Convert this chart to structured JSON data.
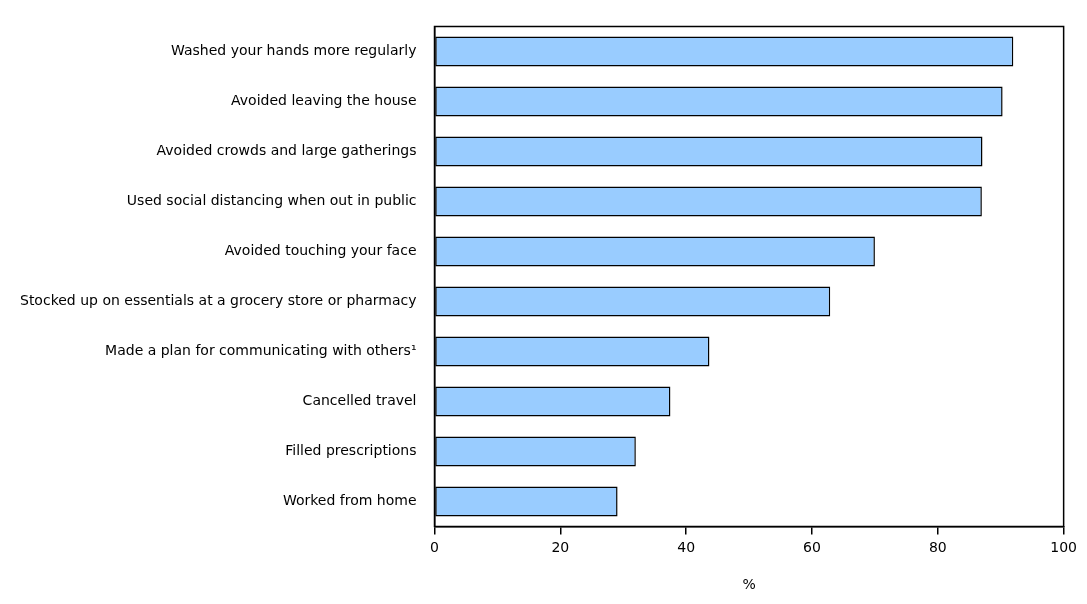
{
  "chart_data": {
    "type": "bar",
    "orientation": "horizontal",
    "xlabel": "%",
    "categories": [
      "Washed your hands more regularly",
      "Avoided leaving the house",
      "Avoided crowds and large gatherings",
      "Used social distancing when out in public",
      "Avoided touching your face",
      "Stocked up on essentials at a grocery store or pharmacy",
      "Made a plan for communicating with others¹",
      "Cancelled travel",
      "Filled prescriptions",
      "Worked from home"
    ],
    "values": [
      92.0,
      90.3,
      87.1,
      87.0,
      70.0,
      62.9,
      43.7,
      37.5,
      32.0,
      29.1
    ],
    "color": "#99ccff",
    "xlim": [
      0,
      100
    ],
    "xticks": [
      0,
      20,
      40,
      60,
      80,
      100
    ],
    "grid": false,
    "legend": false
  }
}
